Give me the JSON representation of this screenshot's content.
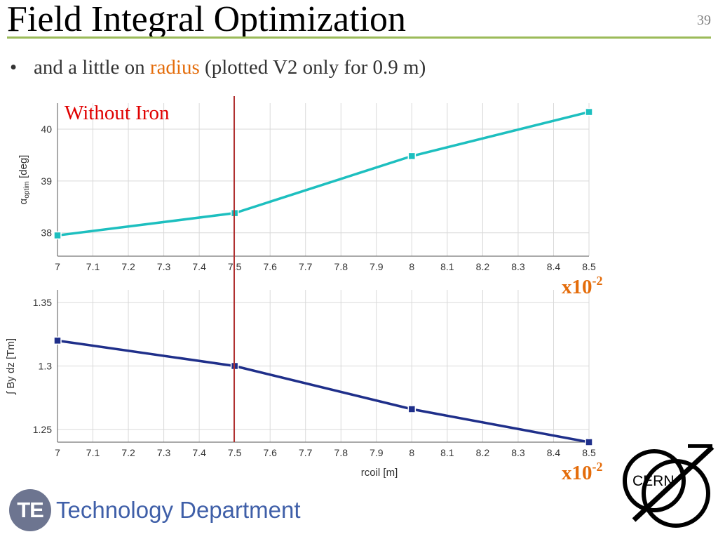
{
  "slide": {
    "title": "Field Integral Optimization",
    "number": "39",
    "bullet": {
      "prefix": "and a little on ",
      "highlight": "radius",
      "suffix": " (plotted V2 only for 0.9 m)"
    }
  },
  "annotations": {
    "without_iron": "Without Iron",
    "scale_top": "x10",
    "scale_top_exp": "-2",
    "scale_bottom": "x10",
    "scale_bottom_exp": "-2"
  },
  "footer": {
    "badge": "TE",
    "department": "Technology Department",
    "cern_label": "CERN"
  },
  "colors": {
    "title_rule": "#9bbb59",
    "highlight": "#e46c0a",
    "series_top": "#1dbfbf",
    "series_bottom": "#1f2f8a",
    "marker_line": "#b03030",
    "without_iron": "#e00000",
    "scale_label": "#e46c0a"
  },
  "chart_data": [
    {
      "type": "line",
      "x": [
        7,
        7.5,
        8,
        8.5
      ],
      "series": [
        {
          "values": [
            37.95,
            38.38,
            39.48,
            40.33
          ]
        }
      ],
      "ylabel_main": "α",
      "ylabel_sub": "optim",
      "ylabel_unit": " [deg]",
      "xlabel": "",
      "xlim": [
        7,
        8.5
      ],
      "ylim": [
        37.55,
        40.5
      ],
      "xticks": [
        "7",
        "7.1",
        "7.2",
        "7.3",
        "7.4",
        "7.5",
        "7.6",
        "7.7",
        "7.8",
        "7.9",
        "8",
        "8.1",
        "8.2",
        "8.3",
        "8.4",
        "8.5"
      ],
      "yticks": [
        "38",
        "39",
        "40"
      ],
      "ytick_values": [
        38,
        39,
        40
      ],
      "vline_x": 7.5,
      "grid": true
    },
    {
      "type": "line",
      "x": [
        7,
        7.5,
        8,
        8.5
      ],
      "series": [
        {
          "values": [
            1.32,
            1.3,
            1.266,
            1.24
          ]
        }
      ],
      "ylabel_main": "∫ By dz [Tm]",
      "xlabel": "rcoil [m]",
      "xlim": [
        7,
        8.5
      ],
      "ylim": [
        1.24,
        1.36
      ],
      "xticks": [
        "7",
        "7.1",
        "7.2",
        "7.3",
        "7.4",
        "7.5",
        "7.6",
        "7.7",
        "7.8",
        "7.9",
        "8",
        "8.1",
        "8.2",
        "8.3",
        "8.4",
        "8.5"
      ],
      "yticks": [
        "1.25",
        "1.3",
        "1.35"
      ],
      "ytick_values": [
        1.25,
        1.3,
        1.35
      ],
      "vline_x": 7.5,
      "grid": true
    }
  ]
}
